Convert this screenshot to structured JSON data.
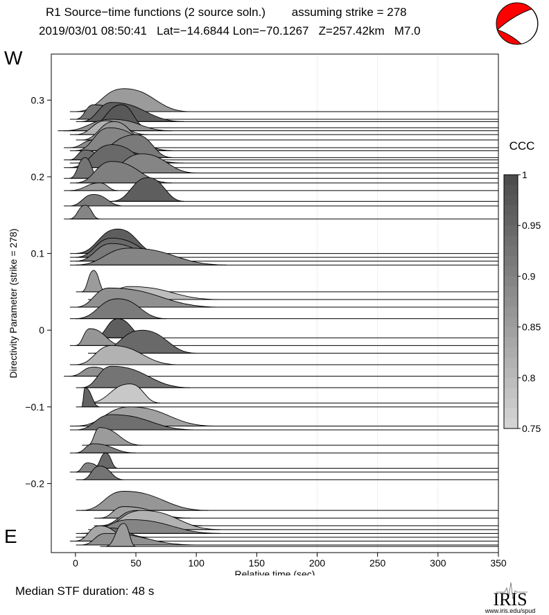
{
  "header": {
    "line1": "R1 Source−time functions (2 source soln.)        assuming strike = 278",
    "line2": "2019/03/01 08:50:41   Lat=−14.6844 Lon=−70.1267   Z=257.42km   M7.0"
  },
  "side_labels": {
    "west": "W",
    "east": "E"
  },
  "footer": {
    "median": "Median STF duration: 48 s"
  },
  "logo": {
    "text": "IRIS",
    "url_text": "www.iris.edu/spud"
  },
  "colorbar": {
    "title": "CCC",
    "ticks": [
      "1",
      "0.95",
      "0.9",
      "0.85",
      "0.8",
      "0.75"
    ],
    "min": 0.75,
    "max": 1.0
  },
  "colors": {
    "beachball_fill": "#ff0000",
    "beachball_white": "#ffffff",
    "gray_dark": "#4d4d4d",
    "gray_light": "#d9d9d9"
  },
  "chart_data": {
    "type": "area",
    "title": "",
    "xlabel": "Relative time (sec)",
    "ylabel": "Directivity Parameter (strike = 278)",
    "xlim": [
      -20,
      350
    ],
    "ylim": [
      -0.29,
      0.36
    ],
    "xticks": [
      0,
      50,
      100,
      150,
      200,
      250,
      300,
      350
    ],
    "xtick_labels": [
      "0",
      "50",
      "100",
      "150",
      "200",
      "250",
      "300",
      "350"
    ],
    "yticks": [
      -0.2,
      -0.1,
      0,
      0.1,
      0.2,
      0.3
    ],
    "ytick_labels": [
      "−0.2",
      "−0.1",
      "0",
      "0.1",
      "0.2",
      "0.3"
    ],
    "grid": "vertical",
    "series": [
      {
        "dp": 0.285,
        "t0": 0,
        "t1": 95,
        "peak_t": 40,
        "amp": 0.03,
        "ccc": 0.86
      },
      {
        "dp": 0.275,
        "t0": 0,
        "t1": 60,
        "peak_t": 15,
        "amp": 0.019,
        "ccc": 0.93
      },
      {
        "dp": 0.272,
        "t0": 5,
        "t1": 90,
        "peak_t": 30,
        "amp": 0.025,
        "ccc": 0.97
      },
      {
        "dp": 0.264,
        "t0": 10,
        "t1": 60,
        "peak_t": 38,
        "amp": 0.03,
        "ccc": 0.98
      },
      {
        "dp": 0.26,
        "t0": -10,
        "t1": 80,
        "peak_t": 30,
        "amp": 0.015,
        "ccc": 0.88
      },
      {
        "dp": 0.255,
        "t0": 0,
        "t1": 60,
        "peak_t": 25,
        "amp": 0.018,
        "ccc": 0.82
      },
      {
        "dp": 0.248,
        "t0": 5,
        "t1": 60,
        "peak_t": 32,
        "amp": 0.024,
        "ccc": 0.87
      },
      {
        "dp": 0.238,
        "t0": -5,
        "t1": 40,
        "peak_t": 15,
        "amp": 0.01,
        "ccc": 0.89
      },
      {
        "dp": 0.234,
        "t0": 0,
        "t1": 80,
        "peak_t": 28,
        "amp": 0.03,
        "ccc": 0.9
      },
      {
        "dp": 0.225,
        "t0": 5,
        "t1": 80,
        "peak_t": 50,
        "amp": 0.03,
        "ccc": 0.92
      },
      {
        "dp": 0.222,
        "t0": -5,
        "t1": 30,
        "peak_t": 8,
        "amp": 0.013,
        "ccc": 0.94
      },
      {
        "dp": 0.218,
        "t0": 0,
        "t1": 90,
        "peak_t": 30,
        "amp": 0.017,
        "ccc": 0.96
      },
      {
        "dp": 0.212,
        "t0": -5,
        "t1": 75,
        "peak_t": 30,
        "amp": 0.03,
        "ccc": 0.95
      },
      {
        "dp": 0.205,
        "t0": 20,
        "t1": 100,
        "peak_t": 55,
        "amp": 0.025,
        "ccc": 0.9
      },
      {
        "dp": 0.198,
        "t0": -5,
        "t1": 20,
        "peak_t": 8,
        "amp": 0.027,
        "ccc": 0.93
      },
      {
        "dp": 0.192,
        "t0": 0,
        "t1": 80,
        "peak_t": 30,
        "amp": 0.028,
        "ccc": 0.91
      },
      {
        "dp": 0.182,
        "t0": -5,
        "t1": 35,
        "peak_t": 20,
        "amp": 0.01,
        "ccc": 0.86
      },
      {
        "dp": 0.168,
        "t0": 30,
        "t1": 90,
        "peak_t": 60,
        "amp": 0.031,
        "ccc": 0.97
      },
      {
        "dp": 0.162,
        "t0": -5,
        "t1": 40,
        "peak_t": 15,
        "amp": 0.015,
        "ccc": 0.92
      },
      {
        "dp": 0.145,
        "t0": -5,
        "t1": 20,
        "peak_t": 8,
        "amp": 0.018,
        "ccc": 0.9
      },
      {
        "dp": 0.1,
        "t0": 0,
        "t1": 70,
        "peak_t": 35,
        "amp": 0.032,
        "ccc": 0.97
      },
      {
        "dp": 0.095,
        "t0": 0,
        "t1": 80,
        "peak_t": 30,
        "amp": 0.025,
        "ccc": 0.95
      },
      {
        "dp": 0.09,
        "t0": 0,
        "t1": 80,
        "peak_t": 30,
        "amp": 0.023,
        "ccc": 0.92
      },
      {
        "dp": 0.085,
        "t0": 0,
        "t1": 125,
        "peak_t": 45,
        "amp": 0.022,
        "ccc": 0.9
      },
      {
        "dp": 0.05,
        "t0": 5,
        "t1": 25,
        "peak_t": 15,
        "amp": 0.028,
        "ccc": 0.86
      },
      {
        "dp": 0.04,
        "t0": 15,
        "t1": 120,
        "peak_t": 45,
        "amp": 0.017,
        "ccc": 0.8
      },
      {
        "dp": 0.03,
        "t0": 0,
        "t1": 120,
        "peak_t": 28,
        "amp": 0.025,
        "ccc": 0.88
      },
      {
        "dp": 0.015,
        "t0": 0,
        "t1": 75,
        "peak_t": 35,
        "amp": 0.026,
        "ccc": 0.92
      },
      {
        "dp": -0.01,
        "t0": 15,
        "t1": 60,
        "peak_t": 35,
        "amp": 0.025,
        "ccc": 0.97
      },
      {
        "dp": -0.02,
        "t0": 0,
        "t1": 40,
        "peak_t": 12,
        "amp": 0.022,
        "ccc": 0.87
      },
      {
        "dp": -0.03,
        "t0": 15,
        "t1": 100,
        "peak_t": 55,
        "amp": 0.03,
        "ccc": 0.95
      },
      {
        "dp": -0.045,
        "t0": 0,
        "t1": 85,
        "peak_t": 30,
        "amp": 0.025,
        "ccc": 0.82
      },
      {
        "dp": -0.06,
        "t0": -5,
        "t1": 40,
        "peak_t": 15,
        "amp": 0.012,
        "ccc": 0.88
      },
      {
        "dp": -0.075,
        "t0": 5,
        "t1": 95,
        "peak_t": 30,
        "amp": 0.028,
        "ccc": 0.93
      },
      {
        "dp": -0.095,
        "t0": 10,
        "t1": 70,
        "peak_t": 45,
        "amp": 0.025,
        "ccc": 0.78
      },
      {
        "dp": -0.1,
        "t0": 5,
        "t1": 20,
        "peak_t": 8,
        "amp": 0.025,
        "ccc": 0.96
      },
      {
        "dp": -0.125,
        "t0": 0,
        "t1": 115,
        "peak_t": 45,
        "amp": 0.025,
        "ccc": 0.85
      },
      {
        "dp": -0.13,
        "t0": 0,
        "t1": 100,
        "peak_t": 30,
        "amp": 0.02,
        "ccc": 0.94
      },
      {
        "dp": -0.15,
        "t0": 10,
        "t1": 55,
        "peak_t": 20,
        "amp": 0.023,
        "ccc": 0.86
      },
      {
        "dp": -0.16,
        "t0": 0,
        "t1": 50,
        "peak_t": 15,
        "amp": 0.012,
        "ccc": 0.91
      },
      {
        "dp": -0.18,
        "t0": 15,
        "t1": 35,
        "peak_t": 25,
        "amp": 0.02,
        "ccc": 0.95
      },
      {
        "dp": -0.185,
        "t0": 0,
        "t1": 30,
        "peak_t": 10,
        "amp": 0.012,
        "ccc": 0.9
      },
      {
        "dp": -0.195,
        "t0": 5,
        "t1": 40,
        "peak_t": 20,
        "amp": 0.018,
        "ccc": 0.93
      },
      {
        "dp": -0.235,
        "t0": 5,
        "t1": 110,
        "peak_t": 40,
        "amp": 0.025,
        "ccc": 0.87
      },
      {
        "dp": -0.245,
        "t0": 20,
        "t1": 95,
        "peak_t": 40,
        "amp": 0.015,
        "ccc": 0.85
      },
      {
        "dp": -0.255,
        "t0": 20,
        "t1": 105,
        "peak_t": 50,
        "amp": 0.02,
        "ccc": 0.88
      },
      {
        "dp": -0.26,
        "t0": 15,
        "t1": 120,
        "peak_t": 55,
        "amp": 0.025,
        "ccc": 0.82
      },
      {
        "dp": -0.265,
        "t0": 5,
        "t1": 120,
        "peak_t": 45,
        "amp": 0.018,
        "ccc": 0.9
      },
      {
        "dp": -0.27,
        "t0": 5,
        "t1": 60,
        "peak_t": 30,
        "amp": 0.012,
        "ccc": 0.94
      },
      {
        "dp": -0.275,
        "t0": 0,
        "t1": 50,
        "peak_t": 20,
        "amp": 0.02,
        "ccc": 0.84
      },
      {
        "dp": -0.28,
        "t0": 5,
        "t1": 100,
        "peak_t": 25,
        "amp": 0.015,
        "ccc": 0.88
      },
      {
        "dp": -0.282,
        "t0": 25,
        "t1": 50,
        "peak_t": 40,
        "amp": 0.03,
        "ccc": 0.86
      }
    ]
  }
}
